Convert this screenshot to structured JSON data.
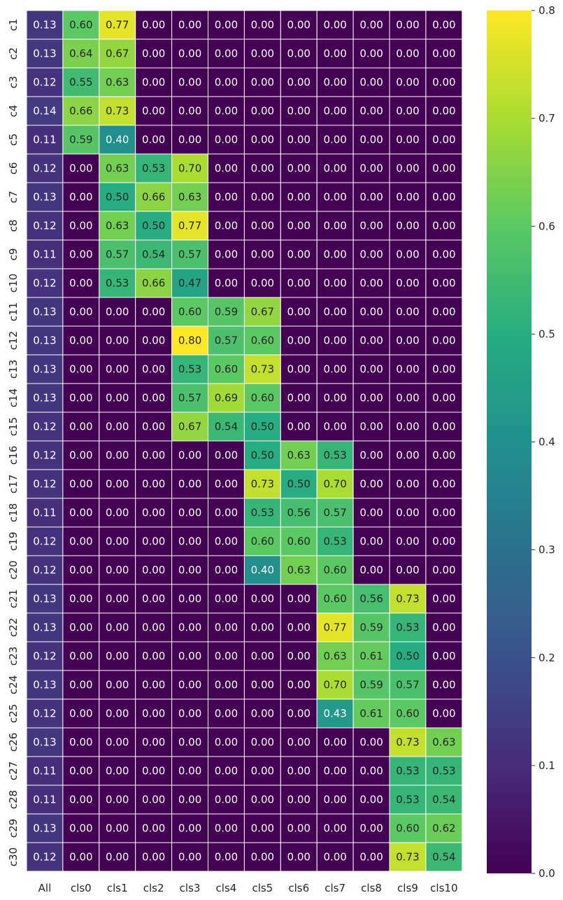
{
  "chart_data": {
    "type": "heatmap",
    "title": "",
    "xlabel": "",
    "ylabel": "",
    "columns": [
      "All",
      "cls0",
      "cls1",
      "cls2",
      "cls3",
      "cls4",
      "cls5",
      "cls6",
      "cls7",
      "cls8",
      "cls9",
      "cls10"
    ],
    "rows": [
      "c1",
      "c2",
      "c3",
      "c4",
      "c5",
      "c6",
      "c7",
      "c8",
      "c9",
      "c10",
      "c11",
      "c12",
      "c13",
      "c14",
      "c15",
      "c16",
      "c17",
      "c18",
      "c19",
      "c20",
      "c21",
      "c22",
      "c23",
      "c24",
      "c25",
      "c26",
      "c27",
      "c28",
      "c29",
      "c30"
    ],
    "values": [
      [
        0.13,
        0.6,
        0.77,
        0.0,
        0.0,
        0.0,
        0.0,
        0.0,
        0.0,
        0.0,
        0.0,
        0.0
      ],
      [
        0.13,
        0.64,
        0.67,
        0.0,
        0.0,
        0.0,
        0.0,
        0.0,
        0.0,
        0.0,
        0.0,
        0.0
      ],
      [
        0.12,
        0.55,
        0.63,
        0.0,
        0.0,
        0.0,
        0.0,
        0.0,
        0.0,
        0.0,
        0.0,
        0.0
      ],
      [
        0.14,
        0.66,
        0.73,
        0.0,
        0.0,
        0.0,
        0.0,
        0.0,
        0.0,
        0.0,
        0.0,
        0.0
      ],
      [
        0.11,
        0.59,
        0.4,
        0.0,
        0.0,
        0.0,
        0.0,
        0.0,
        0.0,
        0.0,
        0.0,
        0.0
      ],
      [
        0.12,
        0.0,
        0.63,
        0.53,
        0.7,
        0.0,
        0.0,
        0.0,
        0.0,
        0.0,
        0.0,
        0.0
      ],
      [
        0.13,
        0.0,
        0.5,
        0.66,
        0.63,
        0.0,
        0.0,
        0.0,
        0.0,
        0.0,
        0.0,
        0.0
      ],
      [
        0.12,
        0.0,
        0.63,
        0.5,
        0.77,
        0.0,
        0.0,
        0.0,
        0.0,
        0.0,
        0.0,
        0.0
      ],
      [
        0.11,
        0.0,
        0.57,
        0.54,
        0.57,
        0.0,
        0.0,
        0.0,
        0.0,
        0.0,
        0.0,
        0.0
      ],
      [
        0.12,
        0.0,
        0.53,
        0.66,
        0.47,
        0.0,
        0.0,
        0.0,
        0.0,
        0.0,
        0.0,
        0.0
      ],
      [
        0.13,
        0.0,
        0.0,
        0.0,
        0.6,
        0.59,
        0.67,
        0.0,
        0.0,
        0.0,
        0.0,
        0.0
      ],
      [
        0.13,
        0.0,
        0.0,
        0.0,
        0.8,
        0.57,
        0.6,
        0.0,
        0.0,
        0.0,
        0.0,
        0.0
      ],
      [
        0.13,
        0.0,
        0.0,
        0.0,
        0.53,
        0.6,
        0.73,
        0.0,
        0.0,
        0.0,
        0.0,
        0.0
      ],
      [
        0.13,
        0.0,
        0.0,
        0.0,
        0.57,
        0.69,
        0.6,
        0.0,
        0.0,
        0.0,
        0.0,
        0.0
      ],
      [
        0.12,
        0.0,
        0.0,
        0.0,
        0.67,
        0.54,
        0.5,
        0.0,
        0.0,
        0.0,
        0.0,
        0.0
      ],
      [
        0.12,
        0.0,
        0.0,
        0.0,
        0.0,
        0.0,
        0.5,
        0.63,
        0.53,
        0.0,
        0.0,
        0.0
      ],
      [
        0.12,
        0.0,
        0.0,
        0.0,
        0.0,
        0.0,
        0.73,
        0.5,
        0.7,
        0.0,
        0.0,
        0.0
      ],
      [
        0.11,
        0.0,
        0.0,
        0.0,
        0.0,
        0.0,
        0.53,
        0.56,
        0.57,
        0.0,
        0.0,
        0.0
      ],
      [
        0.12,
        0.0,
        0.0,
        0.0,
        0.0,
        0.0,
        0.6,
        0.6,
        0.53,
        0.0,
        0.0,
        0.0
      ],
      [
        0.12,
        0.0,
        0.0,
        0.0,
        0.0,
        0.0,
        0.4,
        0.63,
        0.6,
        0.0,
        0.0,
        0.0
      ],
      [
        0.13,
        0.0,
        0.0,
        0.0,
        0.0,
        0.0,
        0.0,
        0.0,
        0.6,
        0.56,
        0.73,
        0.0
      ],
      [
        0.13,
        0.0,
        0.0,
        0.0,
        0.0,
        0.0,
        0.0,
        0.0,
        0.77,
        0.59,
        0.53,
        0.0
      ],
      [
        0.12,
        0.0,
        0.0,
        0.0,
        0.0,
        0.0,
        0.0,
        0.0,
        0.63,
        0.61,
        0.5,
        0.0
      ],
      [
        0.13,
        0.0,
        0.0,
        0.0,
        0.0,
        0.0,
        0.0,
        0.0,
        0.7,
        0.59,
        0.57,
        0.0
      ],
      [
        0.12,
        0.0,
        0.0,
        0.0,
        0.0,
        0.0,
        0.0,
        0.0,
        0.43,
        0.61,
        0.6,
        0.0
      ],
      [
        0.13,
        0.0,
        0.0,
        0.0,
        0.0,
        0.0,
        0.0,
        0.0,
        0.0,
        0.0,
        0.73,
        0.63
      ],
      [
        0.11,
        0.0,
        0.0,
        0.0,
        0.0,
        0.0,
        0.0,
        0.0,
        0.0,
        0.0,
        0.53,
        0.53
      ],
      [
        0.11,
        0.0,
        0.0,
        0.0,
        0.0,
        0.0,
        0.0,
        0.0,
        0.0,
        0.0,
        0.53,
        0.54
      ],
      [
        0.13,
        0.0,
        0.0,
        0.0,
        0.0,
        0.0,
        0.0,
        0.0,
        0.0,
        0.0,
        0.6,
        0.62
      ],
      [
        0.12,
        0.0,
        0.0,
        0.0,
        0.0,
        0.0,
        0.0,
        0.0,
        0.0,
        0.0,
        0.73,
        0.54
      ]
    ],
    "value_format": "0.00",
    "colormap": "viridis",
    "vmin": 0.0,
    "vmax": 0.8,
    "colorbar_ticks": [
      "0.0",
      "0.1",
      "0.2",
      "0.3",
      "0.4",
      "0.5",
      "0.6",
      "0.7",
      "0.8"
    ],
    "cell_gridline_color": "#ffffff",
    "text_color_light": "#ffffff",
    "text_color_dark": "#262626",
    "grid": false,
    "legend": "colorbar-right"
  }
}
